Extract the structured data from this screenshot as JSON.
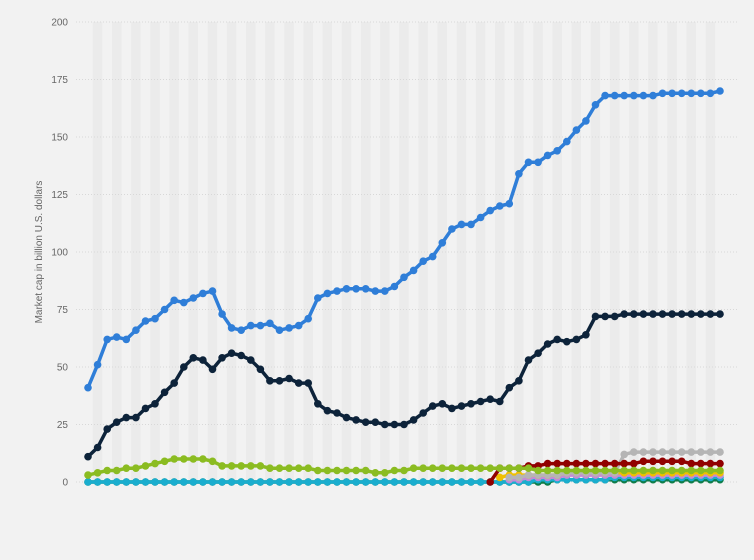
{
  "chart_data": {
    "type": "line",
    "title": "",
    "xlabel": "",
    "ylabel": "Market cap in billion U.S. dollars",
    "ylim": [
      0,
      200
    ],
    "yticks": [
      "0",
      "25",
      "50",
      "75",
      "100",
      "125",
      "150",
      "175",
      "200"
    ],
    "grid": true,
    "legend": "none",
    "series": [
      {
        "color": "#2f7ed8",
        "start": 0,
        "values": [
          41,
          51,
          62,
          63,
          62,
          66,
          70,
          71,
          75,
          79,
          78,
          80,
          82,
          83,
          73,
          67,
          66,
          68,
          68,
          69,
          66,
          67,
          68,
          71,
          80,
          82,
          83,
          84,
          84,
          84,
          83,
          83,
          85,
          89,
          92,
          96,
          98,
          104,
          110,
          112,
          112,
          115,
          118,
          120,
          121,
          134,
          139,
          139,
          142,
          144,
          148,
          153,
          157,
          164,
          168,
          168,
          168,
          168,
          168,
          168,
          169,
          169,
          169,
          169,
          169,
          169,
          170
        ]
      },
      {
        "color": "#0d233a",
        "start": 0,
        "values": [
          11,
          15,
          23,
          26,
          28,
          28,
          32,
          34,
          39,
          43,
          50,
          54,
          53,
          49,
          54,
          56,
          55,
          53,
          49,
          44,
          44,
          45,
          43,
          43,
          34,
          31,
          30,
          28,
          27,
          26,
          26,
          25,
          25,
          25,
          27,
          30,
          33,
          34,
          32,
          33,
          34,
          35,
          36,
          35,
          41,
          44,
          53,
          56,
          60,
          62,
          61,
          62,
          64,
          72,
          72,
          72,
          73,
          73,
          73,
          73,
          73,
          73,
          73,
          73,
          73,
          73,
          73
        ]
      },
      {
        "color": "#8bbc21",
        "start": 0,
        "values": [
          3,
          4,
          5,
          5,
          6,
          6,
          7,
          8,
          9,
          10,
          10,
          10,
          10,
          9,
          7,
          7,
          7,
          7,
          7,
          6,
          6,
          6,
          6,
          6,
          5,
          5,
          5,
          5,
          5,
          5,
          4,
          4,
          5,
          5,
          6,
          6,
          6,
          6,
          6,
          6,
          6,
          6,
          6,
          6,
          6,
          6,
          6,
          5,
          5,
          5,
          5,
          5,
          5,
          5,
          5,
          5,
          5,
          5,
          5,
          5,
          5,
          5,
          5,
          5,
          5,
          5,
          5
        ]
      },
      {
        "color": "#910000",
        "start": 42,
        "values": [
          0,
          6,
          6,
          6,
          7,
          7,
          8,
          8,
          8,
          8,
          8,
          8,
          8,
          8,
          8,
          8,
          9,
          9,
          9,
          9,
          9,
          8,
          8,
          8,
          8
        ]
      },
      {
        "color": "#b5b5b5",
        "start": 44,
        "values": [
          2,
          2,
          3,
          3,
          3,
          3,
          4,
          4,
          4,
          4,
          4,
          4,
          12,
          13,
          13,
          13,
          13,
          13,
          13,
          13,
          13,
          13,
          13
        ]
      },
      {
        "color": "#f0c000",
        "start": 43,
        "values": [
          2,
          3,
          3,
          3,
          3,
          3,
          3,
          4,
          4,
          4,
          4,
          4,
          4,
          4,
          4,
          4,
          4,
          4,
          4,
          4,
          4,
          4,
          4,
          4
        ]
      },
      {
        "color": "#c38bd8",
        "start": 44,
        "values": [
          1,
          1,
          2,
          2,
          2,
          2,
          3,
          3,
          3,
          3,
          3,
          3,
          3,
          3,
          3,
          3,
          3,
          3,
          3,
          3,
          3,
          3,
          3
        ]
      },
      {
        "color": "#1aadce",
        "start": 0,
        "values": [
          0,
          0,
          0,
          0,
          0,
          0,
          0,
          0,
          0,
          0,
          0,
          0,
          0,
          0,
          0,
          0,
          0,
          0,
          0,
          0,
          0,
          0,
          0,
          0,
          0,
          0,
          0,
          0,
          0,
          0,
          0,
          0,
          0,
          0,
          0,
          0,
          0,
          0,
          0,
          0,
          0,
          0,
          0,
          0,
          0,
          0,
          0,
          1,
          1,
          1,
          1,
          1,
          1,
          1,
          1,
          2,
          2,
          2,
          2,
          2,
          2,
          2,
          2,
          2,
          2,
          2,
          2
        ]
      },
      {
        "color": "#0e7d4a",
        "start": 0,
        "values": [
          0,
          0,
          0,
          0,
          0,
          0,
          0,
          0,
          0,
          0,
          0,
          0,
          0,
          0,
          0,
          0,
          0,
          0,
          0,
          0,
          0,
          0,
          0,
          0,
          0,
          0,
          0,
          0,
          0,
          0,
          0,
          0,
          0,
          0,
          0,
          0,
          0,
          0,
          0,
          0,
          0,
          0,
          0,
          0,
          0,
          0,
          0,
          0,
          0,
          1,
          1,
          1,
          1,
          1,
          1,
          1,
          1,
          1,
          1,
          1,
          1,
          1,
          1,
          1,
          1,
          1,
          1
        ]
      }
    ]
  }
}
